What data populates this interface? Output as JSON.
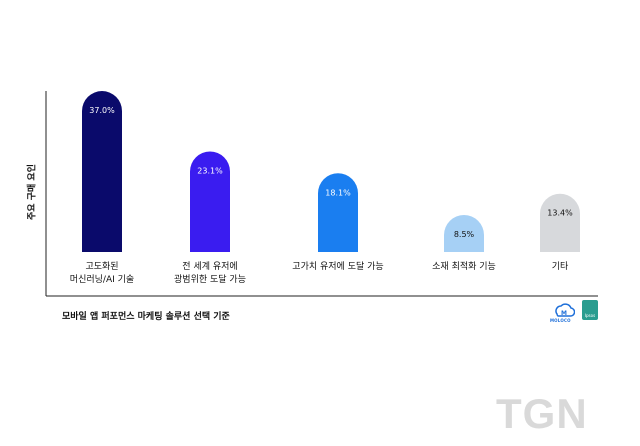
{
  "chart_data": {
    "type": "bar",
    "ylabel": "주요 구매 요인",
    "xlabel": "모바일 앱 퍼포먼스 마케팅 솔루션 선택 기준",
    "categories": [
      "고도화된\n머신러닝/AI 기술",
      "전 세계 유저에\n광범위한 도달 가능",
      "고가치 유저에 도달 가능",
      "소재 최적화 기능",
      "기타"
    ],
    "values": [
      37.0,
      23.1,
      18.1,
      8.5,
      13.4
    ],
    "value_labels": [
      "37.0%",
      "23.1%",
      "18.1%",
      "8.5%",
      "13.4%"
    ],
    "colors": [
      "#0a0a6b",
      "#3a1cf0",
      "#1a7ef0",
      "#a6d0f5",
      "#d7d9dc"
    ],
    "label_colors": [
      "#ffffff",
      "#ffffff",
      "#ffffff",
      "#111111",
      "#111111"
    ],
    "grid": false
  },
  "logos": {
    "moloco": "MOLOCO",
    "ipsos": "Ipsos"
  },
  "watermark": "TGN"
}
